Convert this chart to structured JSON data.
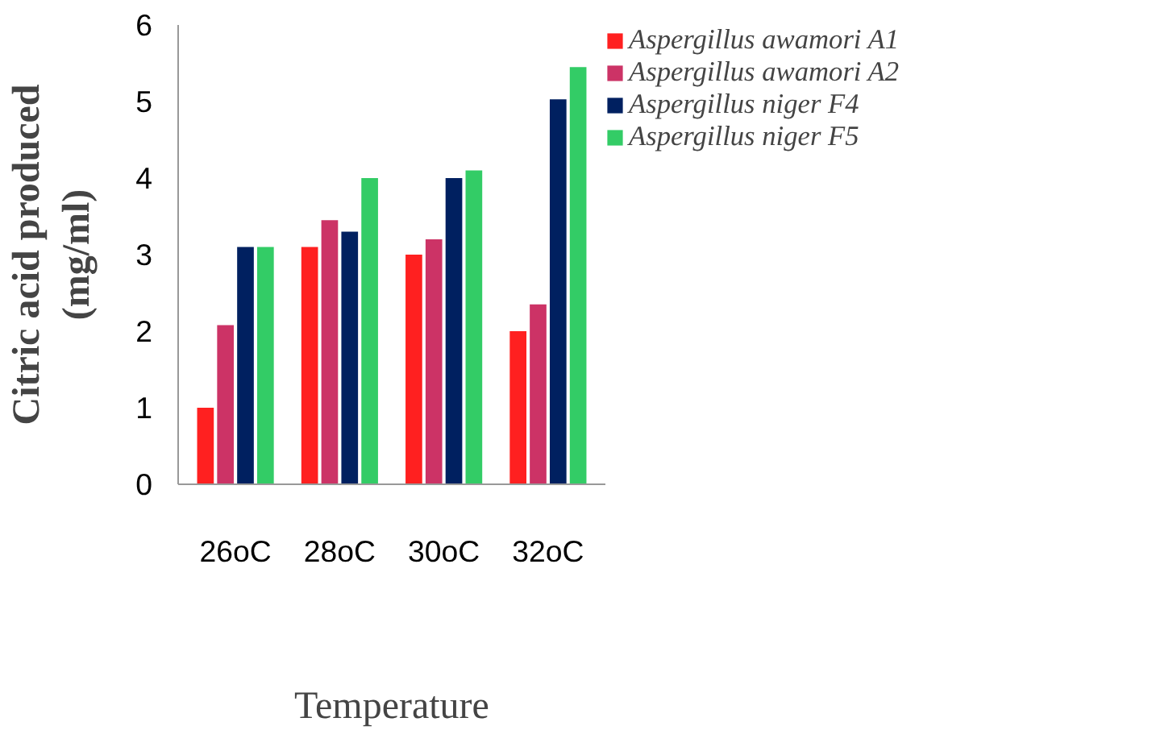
{
  "chart_data": {
    "type": "bar",
    "xlabel": "Temperature",
    "ylabel": "Citric acid produced\n(mg/ml)",
    "categories": [
      "26oC",
      "28oC",
      "30oC",
      "32oC"
    ],
    "series": [
      {
        "name": "Aspergillus awamori A1",
        "color": "#ff2020",
        "values": [
          1.0,
          3.1,
          3.0,
          2.0
        ]
      },
      {
        "name": "Aspergillus awamori A2",
        "color": "#cc3366",
        "values": [
          2.08,
          3.45,
          3.2,
          2.35
        ]
      },
      {
        "name": "Aspergillus niger F4",
        "color": "#002060",
        "values": [
          3.1,
          3.3,
          4.0,
          5.03
        ]
      },
      {
        "name": "Aspergillus niger F5",
        "color": "#33cc66",
        "values": [
          3.1,
          4.0,
          4.1,
          5.45
        ]
      }
    ],
    "ylim": [
      0,
      6
    ],
    "yticks": [
      0,
      1,
      2,
      3,
      4,
      5,
      6
    ],
    "grid": false,
    "legend": "top right"
  }
}
